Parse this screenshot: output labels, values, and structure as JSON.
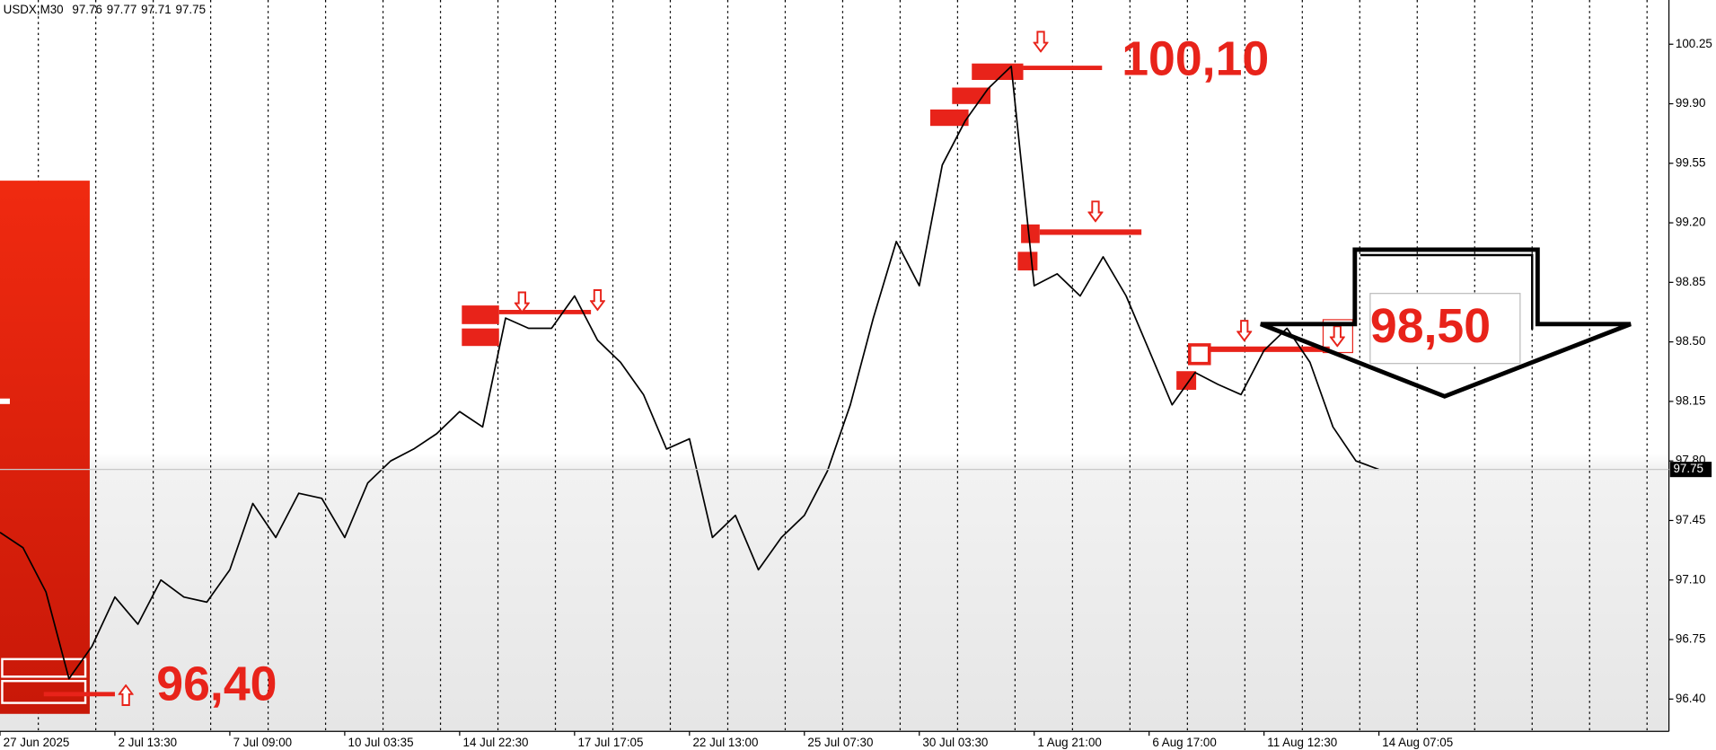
{
  "chart_data": {
    "type": "line",
    "title": "USDX,M30",
    "ohlc": [
      97.76,
      97.77,
      97.71,
      97.75
    ],
    "categories": [
      "27 Jun 2025",
      null,
      null,
      null,
      null,
      "2 Jul 13:30",
      null,
      null,
      null,
      null,
      "7 Jul 09:00",
      null,
      null,
      null,
      null,
      "10 Jul 03:35",
      null,
      null,
      null,
      null,
      "14 Jul 22:30",
      null,
      null,
      null,
      null,
      "17 Jul 17:05",
      null,
      null,
      null,
      null,
      "22 Jul 13:00",
      null,
      null,
      null,
      null,
      "25 Jul 07:30",
      null,
      null,
      null,
      null,
      "30 Jul 03:30",
      null,
      null,
      null,
      null,
      "1 Aug 21:00",
      null,
      null,
      null,
      null,
      "6 Aug 17:00",
      null,
      null,
      null,
      null,
      "11 Aug 12:30",
      null,
      null,
      null,
      null,
      "14 Aug 07:05"
    ],
    "series": [
      {
        "color": "#000000",
        "values": [
          97.38,
          97.29,
          97.03,
          96.52,
          96.71,
          97.0,
          96.84,
          97.1,
          97.0,
          96.97,
          97.16,
          97.55,
          97.35,
          97.61,
          97.58,
          97.35,
          97.67,
          97.8,
          97.87,
          97.96,
          98.09,
          98.0,
          98.64,
          98.58,
          98.58,
          98.77,
          98.51,
          98.38,
          98.19,
          97.87,
          97.93,
          97.35,
          97.48,
          97.16,
          97.35,
          97.48,
          97.74,
          98.13,
          98.64,
          99.09,
          98.83,
          99.54,
          99.8,
          99.99,
          100.12,
          98.83,
          98.9,
          98.77,
          99.0,
          98.77,
          98.45,
          98.13,
          98.32,
          98.25,
          98.19,
          98.45,
          98.58,
          98.38,
          98.0,
          97.8,
          97.75
        ]
      }
    ],
    "ylim": [
      96.21,
      100.51
    ],
    "yticks": [
      {
        "value": 96.4,
        "label": "96.40"
      },
      {
        "value": 96.75,
        "label": "96.75"
      },
      {
        "value": 97.1,
        "label": "97.10"
      },
      {
        "value": 97.45,
        "label": "97.45"
      },
      {
        "value": 97.8,
        "label": "97.80"
      },
      {
        "value": 98.15,
        "label": "98.15"
      },
      {
        "value": 98.5,
        "label": "98.50"
      },
      {
        "value": 98.85,
        "label": "98.85"
      },
      {
        "value": 99.2,
        "label": "99.20"
      },
      {
        "value": 99.55,
        "label": "99.55"
      },
      {
        "value": 99.9,
        "label": "99.90"
      },
      {
        "value": 100.25,
        "label": "100.25"
      }
    ],
    "current_price": 97.75,
    "annotations": [
      "100,10",
      "98,50",
      "96,40"
    ],
    "annotation_color": "#e8231a"
  }
}
